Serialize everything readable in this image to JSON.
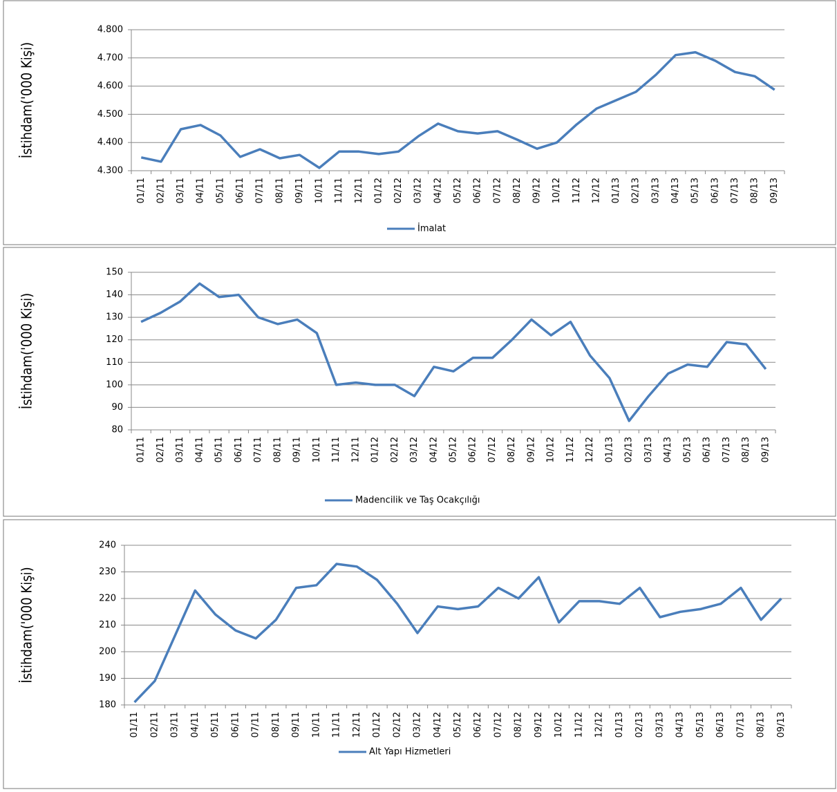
{
  "chart_data": [
    {
      "type": "line",
      "y_label": "İstihdam('000 Kişi)",
      "categories": [
        "01/11",
        "02/11",
        "03/11",
        "04/11",
        "05/11",
        "06/11",
        "07/11",
        "08/11",
        "09/11",
        "10/11",
        "11/11",
        "12/11",
        "01/12",
        "02/12",
        "03/12",
        "04/12",
        "05/12",
        "06/12",
        "07/12",
        "08/12",
        "09/12",
        "10/12",
        "11/12",
        "12/12",
        "01/13",
        "02/13",
        "03/13",
        "04/13",
        "05/13",
        "06/13",
        "07/13",
        "08/13",
        "09/13"
      ],
      "series": [
        {
          "name": "İmalat",
          "color": "#4a7ebb",
          "values": [
            4347,
            4332,
            4447,
            4462,
            4425,
            4349,
            4376,
            4344,
            4356,
            4310,
            4368,
            4368,
            4359,
            4368,
            4422,
            4467,
            4440,
            4432,
            4440,
            4410,
            4378,
            4400,
            4464,
            4520,
            4550,
            4580,
            4640,
            4710,
            4720,
            4690,
            4650,
            4635,
            4587
          ]
        }
      ],
      "ylim": [
        4300,
        4800
      ],
      "yticks": [
        {
          "value": 4300,
          "label": "4.300"
        },
        {
          "value": 4400,
          "label": "4.400"
        },
        {
          "value": 4500,
          "label": "4.500"
        },
        {
          "value": 4600,
          "label": "4.600"
        },
        {
          "value": 4700,
          "label": "4.700"
        },
        {
          "value": 4800,
          "label": "4.800"
        }
      ],
      "grid": true
    },
    {
      "type": "line",
      "y_label": "İstihdam('000 Kişi)",
      "categories": [
        "01/11",
        "02/11",
        "03/11",
        "04/11",
        "05/11",
        "06/11",
        "07/11",
        "08/11",
        "09/11",
        "10/11",
        "11/11",
        "12/11",
        "01/12",
        "02/12",
        "03/12",
        "04/12",
        "05/12",
        "06/12",
        "07/12",
        "08/12",
        "09/12",
        "10/12",
        "11/12",
        "12/12",
        "01/13",
        "02/13",
        "03/13",
        "04/13",
        "05/13",
        "06/13",
        "07/13",
        "08/13",
        "09/13"
      ],
      "series": [
        {
          "name": "Madencilik ve Taş Ocakçılığı",
          "color": "#4a7ebb",
          "values": [
            128,
            132,
            137,
            145,
            139,
            140,
            130,
            127,
            129,
            123,
            100,
            101,
            100,
            100,
            95,
            108,
            106,
            112,
            112,
            120,
            129,
            122,
            128,
            113,
            103,
            84,
            95,
            105,
            109,
            108,
            119,
            118,
            107
          ]
        }
      ],
      "ylim": [
        80,
        150
      ],
      "yticks": [
        80,
        90,
        100,
        110,
        120,
        130,
        140,
        150
      ],
      "grid": true
    },
    {
      "type": "line",
      "y_label": "İstihdam('000 Kişi)",
      "categories": [
        "01/11",
        "02/11",
        "03/11",
        "04/11",
        "05/11",
        "06/11",
        "07/11",
        "08/11",
        "09/11",
        "10/11",
        "11/11",
        "12/11",
        "01/12",
        "02/12",
        "03/12",
        "04/12",
        "05/12",
        "06/12",
        "07/12",
        "08/12",
        "09/12",
        "10/12",
        "11/12",
        "12/12",
        "01/13",
        "02/13",
        "03/13",
        "04/13",
        "05/13",
        "06/13",
        "07/13",
        "08/13",
        "09/13"
      ],
      "series": [
        {
          "name": "Alt Yapı Hizmetleri",
          "color": "#4a7ebb",
          "values": [
            181,
            189,
            206,
            223,
            214,
            208,
            205,
            212,
            224,
            225,
            233,
            232,
            227,
            218,
            207,
            217,
            216,
            217,
            224,
            220,
            228,
            211,
            219,
            219,
            218,
            224,
            213,
            215,
            216,
            218,
            224,
            212,
            220
          ]
        }
      ],
      "ylim": [
        180,
        240
      ],
      "yticks": [
        180,
        190,
        200,
        210,
        220,
        230,
        240
      ],
      "grid": true
    }
  ]
}
